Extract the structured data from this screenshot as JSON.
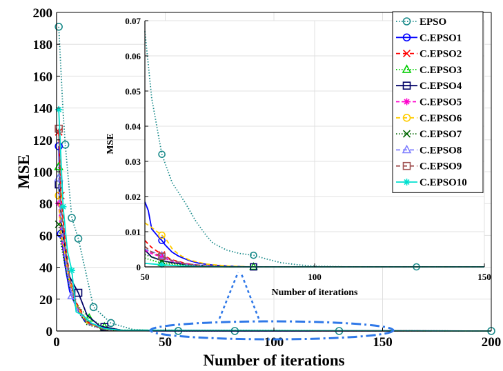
{
  "chart_data": {
    "type": "line",
    "main": {
      "xlabel": "Number of iterations",
      "ylabel": "MSE",
      "xlim": [
        0,
        200
      ],
      "ylim": [
        0,
        200
      ],
      "xticks": [
        0,
        50,
        100,
        150,
        200
      ],
      "yticks": [
        0,
        20,
        40,
        60,
        80,
        100,
        120,
        140,
        160,
        180,
        200
      ],
      "grid": true
    },
    "inset": {
      "xlabel": "Number of iterations",
      "ylabel": "MSE",
      "xlim": [
        50,
        150
      ],
      "ylim": [
        0,
        0.07
      ],
      "xticks": [
        50,
        100,
        150
      ],
      "yticks": [
        0,
        0.01,
        0.02,
        0.03,
        0.04,
        0.05,
        0.06,
        0.07
      ],
      "grid": true
    },
    "legend_position": "top-right",
    "series": [
      {
        "name": "EPSO",
        "color": "#1a8a8a",
        "dash": "1.5,2.5",
        "marker": "circle",
        "main_points": [
          [
            1,
            191
          ],
          [
            3,
            137
          ],
          [
            4,
            117
          ],
          [
            7,
            71
          ],
          [
            10,
            58
          ],
          [
            17,
            15
          ],
          [
            25,
            5
          ],
          [
            35,
            1
          ],
          [
            45,
            0.3
          ],
          [
            56,
            0.03
          ],
          [
            82,
            0.003
          ],
          [
            130,
            0
          ],
          [
            200,
            0
          ]
        ],
        "main_markers": [
          1,
          4,
          7,
          10,
          17,
          25,
          56,
          82,
          130,
          200
        ],
        "inset_points": [
          [
            50,
            0.067
          ],
          [
            52,
            0.048
          ],
          [
            55,
            0.032
          ],
          [
            58,
            0.024
          ],
          [
            60,
            0.021
          ],
          [
            62,
            0.018
          ],
          [
            65,
            0.013
          ],
          [
            68,
            0.009
          ],
          [
            70,
            0.0068
          ],
          [
            74,
            0.0048
          ],
          [
            78,
            0.0038
          ],
          [
            82,
            0.0033
          ],
          [
            86,
            0.0022
          ],
          [
            90,
            0.0012
          ],
          [
            95,
            0.0006
          ],
          [
            100,
            0.0002
          ],
          [
            110,
            0
          ],
          [
            150,
            0
          ]
        ],
        "inset_markers": [
          55,
          82,
          130
        ]
      },
      {
        "name": "C.EPSO1",
        "color": "#0000ff",
        "dash": "",
        "marker": "circle",
        "main_points": [
          [
            1,
            116
          ],
          [
            2,
            61
          ],
          [
            4,
            40
          ],
          [
            6,
            25
          ],
          [
            9,
            15
          ],
          [
            13,
            6
          ],
          [
            20,
            2
          ],
          [
            30,
            0.5
          ],
          [
            45,
            0.05
          ],
          [
            200,
            0
          ]
        ],
        "main_markers": [
          1,
          2
        ],
        "inset_points": [
          [
            50,
            0.0185
          ],
          [
            51,
            0.016
          ],
          [
            52,
            0.0108
          ],
          [
            54,
            0.0085
          ],
          [
            55,
            0.0075
          ],
          [
            56,
            0.0062
          ],
          [
            58,
            0.0042
          ],
          [
            60,
            0.003
          ],
          [
            63,
            0.0018
          ],
          [
            66,
            0.001
          ],
          [
            70,
            0.0005
          ],
          [
            75,
            0.0002
          ],
          [
            80,
            0
          ],
          [
            150,
            0
          ]
        ],
        "inset_markers": [
          55
        ]
      },
      {
        "name": "C.EPSO2",
        "color": "#ff0000",
        "dash": "6,4",
        "marker": "x",
        "main_points": [
          [
            1,
            125
          ],
          [
            2,
            85
          ],
          [
            4,
            55
          ],
          [
            6,
            34
          ],
          [
            9,
            18
          ],
          [
            14,
            6
          ],
          [
            20,
            2
          ],
          [
            30,
            0.4
          ],
          [
            200,
            0
          ]
        ],
        "main_markers": [
          1,
          2
        ],
        "inset_points": [
          [
            50,
            0.0075
          ],
          [
            52,
            0.0055
          ],
          [
            55,
            0.0035
          ],
          [
            58,
            0.002
          ],
          [
            62,
            0.001
          ],
          [
            66,
            0.0004
          ],
          [
            72,
            0.0001
          ],
          [
            80,
            0
          ],
          [
            150,
            0
          ]
        ],
        "inset_markers": [
          55
        ]
      },
      {
        "name": "C.EPSO3",
        "color": "#00cc00",
        "dash": "1.5,2.5",
        "marker": "triangle",
        "main_points": [
          [
            1,
            103
          ],
          [
            2,
            68
          ],
          [
            4,
            45
          ],
          [
            6,
            30
          ],
          [
            9,
            17
          ],
          [
            15,
            8
          ],
          [
            22,
            2.5
          ],
          [
            30,
            0.6
          ],
          [
            200,
            0
          ]
        ],
        "main_markers": [
          1,
          15,
          22
        ],
        "inset_points": [
          [
            50,
            0.0025
          ],
          [
            53,
            0.0016
          ],
          [
            55,
            0.0011
          ],
          [
            58,
            0.0007
          ],
          [
            62,
            0.0004
          ],
          [
            68,
            0.0002
          ],
          [
            75,
            0
          ],
          [
            150,
            0
          ]
        ],
        "inset_markers": [
          55,
          82
        ]
      },
      {
        "name": "C.EPSO4",
        "color": "#000066",
        "dash": "",
        "marker": "square",
        "main_points": [
          [
            1,
            92
          ],
          [
            2,
            70
          ],
          [
            4,
            50
          ],
          [
            6,
            34
          ],
          [
            10,
            24
          ],
          [
            14,
            10
          ],
          [
            20,
            3
          ],
          [
            30,
            0.5
          ],
          [
            200,
            0
          ]
        ],
        "main_markers": [
          1,
          10,
          22
        ],
        "inset_points": [
          [
            50,
            0.0048
          ],
          [
            52,
            0.0028
          ],
          [
            55,
            0.0018
          ],
          [
            58,
            0.0012
          ],
          [
            62,
            0.0007
          ],
          [
            68,
            0.0003
          ],
          [
            75,
            0.0001
          ],
          [
            82,
            0
          ],
          [
            150,
            0
          ]
        ],
        "inset_markers": [
          82
        ]
      },
      {
        "name": "C.EPSO5",
        "color": "#ff00cc",
        "dash": "5,3",
        "marker": "asterisk",
        "main_points": [
          [
            1,
            80
          ],
          [
            2,
            60
          ],
          [
            4,
            45
          ],
          [
            6,
            30
          ],
          [
            9,
            15
          ],
          [
            14,
            5
          ],
          [
            22,
            1
          ],
          [
            30,
            0.3
          ],
          [
            200,
            0
          ]
        ],
        "main_markers": [
          1
        ],
        "inset_points": [
          [
            50,
            0.0048
          ],
          [
            52,
            0.0038
          ],
          [
            55,
            0.0028
          ],
          [
            58,
            0.0016
          ],
          [
            62,
            0.0008
          ],
          [
            68,
            0.0003
          ],
          [
            75,
            0
          ],
          [
            150,
            0
          ]
        ],
        "inset_markers": [
          55
        ]
      },
      {
        "name": "C.EPSO6",
        "color": "#ffcc00",
        "dash": "6,4",
        "marker": "circle",
        "main_points": [
          [
            1,
            85
          ],
          [
            2,
            62
          ],
          [
            4,
            47
          ],
          [
            6,
            32
          ],
          [
            9,
            16
          ],
          [
            14,
            5
          ],
          [
            22,
            1
          ],
          [
            30,
            0.3
          ],
          [
            200,
            0
          ]
        ],
        "main_markers": [
          1
        ],
        "inset_points": [
          [
            50,
            0.0125
          ],
          [
            52,
            0.0112
          ],
          [
            55,
            0.009
          ],
          [
            56,
            0.0082
          ],
          [
            58,
            0.0052
          ],
          [
            60,
            0.0035
          ],
          [
            63,
            0.002
          ],
          [
            68,
            0.0008
          ],
          [
            75,
            0.0002
          ],
          [
            82,
            0
          ],
          [
            150,
            0
          ]
        ],
        "inset_markers": [
          55
        ]
      },
      {
        "name": "C.EPSO7",
        "color": "#006600",
        "dash": "1.5,2.5",
        "marker": "x",
        "main_points": [
          [
            1,
            67
          ],
          [
            2,
            55
          ],
          [
            4,
            40
          ],
          [
            6,
            28
          ],
          [
            9,
            14
          ],
          [
            14,
            4
          ],
          [
            22,
            1
          ],
          [
            30,
            0.2
          ],
          [
            200,
            0
          ]
        ],
        "main_markers": [
          1
        ],
        "inset_points": [
          [
            50,
            0.0035
          ],
          [
            53,
            0.0025
          ],
          [
            55,
            0.0017
          ],
          [
            58,
            0.001
          ],
          [
            62,
            0.0006
          ],
          [
            68,
            0.0002
          ],
          [
            75,
            0
          ],
          [
            150,
            0
          ]
        ],
        "inset_markers": [
          55
        ]
      },
      {
        "name": "C.EPSO8",
        "color": "#8080ff",
        "dash": "6,4",
        "marker": "triangle",
        "main_points": [
          [
            1,
            96
          ],
          [
            2,
            70
          ],
          [
            4,
            45
          ],
          [
            7,
            22
          ],
          [
            10,
            12
          ],
          [
            15,
            4
          ],
          [
            22,
            1
          ],
          [
            30,
            0.2
          ],
          [
            200,
            0
          ]
        ],
        "main_markers": [
          1,
          7
        ],
        "inset_points": [
          [
            50,
            0.005
          ],
          [
            53,
            0.004
          ],
          [
            55,
            0.0032
          ],
          [
            58,
            0.0018
          ],
          [
            62,
            0.0008
          ],
          [
            68,
            0.0003
          ],
          [
            75,
            0
          ],
          [
            150,
            0
          ]
        ],
        "inset_markers": [
          55
        ]
      },
      {
        "name": "C.EPSO9",
        "color": "#a05050",
        "dash": "6,4",
        "marker": "square",
        "main_points": [
          [
            1,
            127
          ],
          [
            2,
            80
          ],
          [
            4,
            52
          ],
          [
            6,
            33
          ],
          [
            9,
            17
          ],
          [
            14,
            5
          ],
          [
            22,
            1
          ],
          [
            30,
            0.3
          ],
          [
            200,
            0
          ]
        ],
        "main_markers": [
          1
        ],
        "inset_points": [
          [
            50,
            0.0058
          ],
          [
            52,
            0.0042
          ],
          [
            55,
            0.003
          ],
          [
            58,
            0.0018
          ],
          [
            62,
            0.0009
          ],
          [
            68,
            0.0003
          ],
          [
            75,
            0
          ],
          [
            150,
            0
          ]
        ],
        "inset_markers": [
          55
        ]
      },
      {
        "name": "C.EPSO10",
        "color": "#00e0d0",
        "dash": "",
        "marker": "asterisk",
        "main_points": [
          [
            1,
            139
          ],
          [
            3,
            78
          ],
          [
            5,
            50
          ],
          [
            7,
            38
          ],
          [
            9,
            12
          ],
          [
            12,
            10
          ],
          [
            16,
            5
          ],
          [
            22,
            1.5
          ],
          [
            30,
            0.4
          ],
          [
            200,
            0
          ]
        ],
        "main_markers": [
          1,
          3,
          7
        ],
        "inset_points": [
          [
            50,
            0.001
          ],
          [
            55,
            0.0006
          ],
          [
            60,
            0.0003
          ],
          [
            65,
            0.0001
          ],
          [
            75,
            0
          ],
          [
            150,
            0
          ]
        ],
        "inset_markers": [
          55
        ]
      }
    ]
  }
}
